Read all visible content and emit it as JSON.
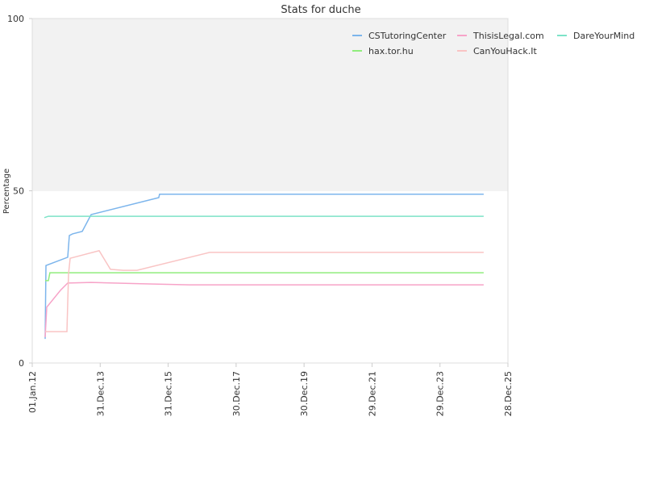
{
  "chart_data": {
    "type": "line",
    "title": "Stats for duche",
    "y_label": "Percentage",
    "xlim": [
      "2012-01-01",
      "2025-12-28"
    ],
    "xticks": [
      {
        "value": "2012-01-01",
        "label": "01.Jan.12"
      },
      {
        "value": "2013-12-31",
        "label": "31.Dec.13"
      },
      {
        "value": "2015-12-31",
        "label": "31.Dec.15"
      },
      {
        "value": "2017-12-30",
        "label": "30.Dec.17"
      },
      {
        "value": "2019-12-30",
        "label": "30.Dec.19"
      },
      {
        "value": "2021-12-29",
        "label": "29.Dec.21"
      },
      {
        "value": "2023-12-29",
        "label": "29.Dec.23"
      },
      {
        "value": "2025-12-28",
        "label": "28.Dec.25"
      }
    ],
    "ylim": [
      0,
      100
    ],
    "yticks": [
      0,
      50,
      100
    ],
    "shaded_range": [
      50,
      100
    ],
    "legend": "top-right",
    "series": [
      {
        "name": "CSTutoringCenter",
        "color": "#7cb5ec",
        "x": [
          "2012-05-19",
          "2012-05-27",
          "2013-01-16",
          "2013-02-02",
          "2013-03-09",
          "2013-06-21",
          "2013-09-24",
          "2015-09-21",
          "2015-09-30",
          "2025-04-11"
        ],
        "values": [
          7,
          28.3,
          30.7,
          37,
          37.5,
          38.2,
          43.1,
          48,
          49,
          49
        ]
      },
      {
        "name": "hax.tor.hu",
        "color": "#90ed7d",
        "x": [
          "2012-05-19",
          "2012-06-22",
          "2012-07-09",
          "2025-04-11"
        ],
        "values": [
          23.9,
          23.9,
          26.2,
          26.2
        ]
      },
      {
        "name": "ThisisLegal.com",
        "color": "#f7a3c8",
        "x": [
          "2012-05-19",
          "2012-06-05",
          "2012-10-30",
          "2013-01-16",
          "2013-09-24",
          "2015-03-14",
          "2016-08-15",
          "2025-04-11"
        ],
        "values": [
          7.5,
          16.2,
          21.1,
          23.2,
          23.4,
          23,
          22.7,
          22.7
        ]
      },
      {
        "name": "CanYouHack.It",
        "color": "#f9c4c4",
        "x": [
          "2012-05-19",
          "2013-01-07",
          "2013-01-25",
          "2013-02-11",
          "2013-12-20",
          "2014-04-20",
          "2014-09-05",
          "2015-01-30",
          "2017-03-20",
          "2025-04-11"
        ],
        "values": [
          9.1,
          9.1,
          25.8,
          30.4,
          32.6,
          27.2,
          26.9,
          26.9,
          32.1,
          32.1
        ]
      },
      {
        "name": "DareYourMind",
        "color": "#7de3c8",
        "x": [
          "2012-05-10",
          "2012-06-22",
          "2025-04-11"
        ],
        "values": [
          42.2,
          42.6,
          42.6
        ]
      }
    ]
  }
}
